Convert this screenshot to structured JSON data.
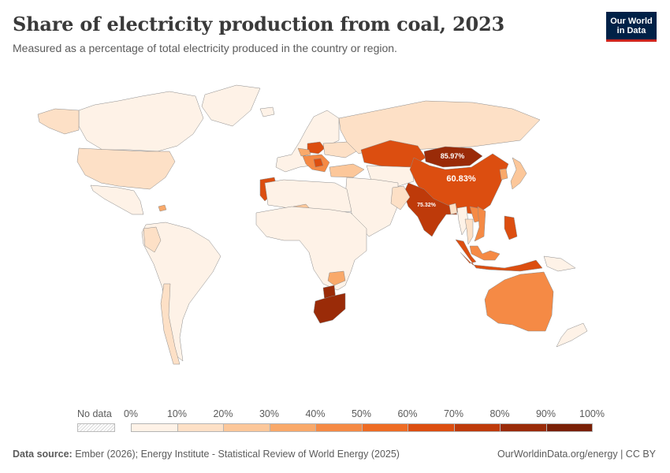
{
  "header": {
    "title": "Share of electricity production from coal, 2023",
    "subtitle": "Measured as a percentage of total electricity produced in the country or region."
  },
  "logo": {
    "line1": "Our World",
    "line2": "in Data"
  },
  "legend": {
    "no_data_label": "No data",
    "ticks": [
      "0%",
      "10%",
      "20%",
      "30%",
      "40%",
      "50%",
      "60%",
      "70%",
      "80%",
      "90%",
      "100%"
    ],
    "colors": [
      "#fef2e7",
      "#fde0c6",
      "#fcc79a",
      "#f9a96a",
      "#f58a45",
      "#ee6c24",
      "#dc4e10",
      "#be3a0a",
      "#9a2b08",
      "#7a2006"
    ]
  },
  "map_labels": [
    {
      "region": "Mongolia",
      "text": "85.97%"
    },
    {
      "region": "China",
      "text": "60.83%"
    },
    {
      "region": "India",
      "text": "75.32%"
    }
  ],
  "chart_data": {
    "type": "choropleth",
    "metric": "Share of electricity production from coal",
    "unit": "%",
    "year": 2023,
    "color_scale": {
      "bins": [
        0,
        10,
        20,
        30,
        40,
        50,
        60,
        70,
        80,
        90,
        100
      ],
      "colors": [
        "#fef2e7",
        "#fde0c6",
        "#fcc79a",
        "#f9a96a",
        "#f58a45",
        "#ee6c24",
        "#dc4e10",
        "#be3a0a",
        "#9a2b08",
        "#7a2006"
      ]
    },
    "labeled_values": [
      {
        "region": "Mongolia",
        "value": 85.97
      },
      {
        "region": "China",
        "value": 60.83
      },
      {
        "region": "India",
        "value": 75.32
      }
    ],
    "regions": [
      {
        "name": "Canada",
        "bin": 0
      },
      {
        "name": "Greenland",
        "bin": 0
      },
      {
        "name": "Alaska",
        "bin": 1
      },
      {
        "name": "United States",
        "bin": 1
      },
      {
        "name": "Mexico",
        "bin": 0
      },
      {
        "name": "Dominican Republic",
        "bin": 3
      },
      {
        "name": "South America",
        "bin": 0
      },
      {
        "name": "Colombia",
        "bin": 1
      },
      {
        "name": "Chile",
        "bin": 1
      },
      {
        "name": "Iceland",
        "bin": 0
      },
      {
        "name": "Western Europe",
        "bin": 0
      },
      {
        "name": "Poland",
        "bin": 6
      },
      {
        "name": "Czechia",
        "bin": 3
      },
      {
        "name": "Balkans",
        "bin": 4
      },
      {
        "name": "Serbia",
        "bin": 6
      },
      {
        "name": "Ukraine",
        "bin": 1
      },
      {
        "name": "Russia",
        "bin": 1
      },
      {
        "name": "Turkey",
        "bin": 2
      },
      {
        "name": "Kazakhstan",
        "bin": 6
      },
      {
        "name": "Central Asia",
        "bin": 0
      },
      {
        "name": "Middle East",
        "bin": 0
      },
      {
        "name": "Morocco",
        "bin": 6
      },
      {
        "name": "North Africa",
        "bin": 0
      },
      {
        "name": "Niger",
        "bin": 2
      },
      {
        "name": "Sub-Saharan Africa",
        "bin": 0
      },
      {
        "name": "Zimbabwe",
        "bin": 3
      },
      {
        "name": "Botswana",
        "bin": 8
      },
      {
        "name": "South Africa",
        "bin": 8
      },
      {
        "name": "Mongolia",
        "bin": 8
      },
      {
        "name": "China",
        "bin": 6
      },
      {
        "name": "India",
        "bin": 7
      },
      {
        "name": "Pakistan",
        "bin": 1
      },
      {
        "name": "Bangladesh",
        "bin": 1
      },
      {
        "name": "Myanmar",
        "bin": 0
      },
      {
        "name": "Thailand",
        "bin": 1
      },
      {
        "name": "Laos",
        "bin": 4
      },
      {
        "name": "Vietnam",
        "bin": 4
      },
      {
        "name": "Philippines",
        "bin": 6
      },
      {
        "name": "Malaysia",
        "bin": 4
      },
      {
        "name": "Indonesia",
        "bin": 6
      },
      {
        "name": "Japan",
        "bin": 2
      },
      {
        "name": "South Korea",
        "bin": 3
      },
      {
        "name": "Australia",
        "bin": 4
      },
      {
        "name": "New Zealand",
        "bin": 0
      },
      {
        "name": "Papua New Guinea",
        "bin": 0
      }
    ]
  },
  "footer": {
    "source_label": "Data source:",
    "source_text": "Ember (2026); Energy Institute - Statistical Review of World Energy (2025)",
    "right_text": "OurWorldinData.org/energy | CC BY"
  }
}
